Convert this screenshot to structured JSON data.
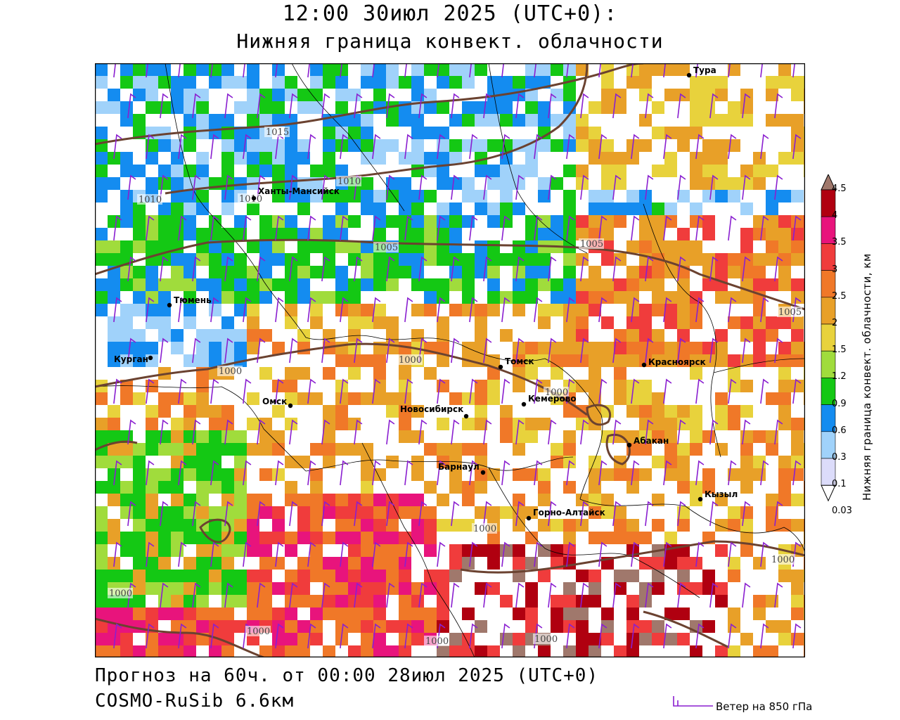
{
  "header": {
    "line1": "12:00 30июл 2025 (UTC+0):",
    "line2": "Нижняя граница конвект. облачности"
  },
  "footer": {
    "forecast": "Прогноз на 60ч. от 00:00 28июл 2025 (UTC+0)",
    "model": "COSMO-RuSib 6.6км",
    "wind_legend": "Ветер на 850 гПа"
  },
  "colorbar": {
    "title": "Нижняя граница конвект. облачности, км",
    "levels": [
      {
        "label": "4.5",
        "color": "#a0786c"
      },
      {
        "label": "4",
        "color": "#b00010"
      },
      {
        "label": "3.5",
        "color": "#e8147c"
      },
      {
        "label": "3",
        "color": "#f03c3c"
      },
      {
        "label": "2.5",
        "color": "#f07828"
      },
      {
        "label": "2",
        "color": "#e8a028"
      },
      {
        "label": "1.5",
        "color": "#e8d23c"
      },
      {
        "label": "1.2",
        "color": "#a0dc3c"
      },
      {
        "label": "0.9",
        "color": "#14c814"
      },
      {
        "label": "0.6",
        "color": "#148cf0"
      },
      {
        "label": "0.3",
        "color": "#a0d2fa"
      },
      {
        "label": "0.1",
        "color": "#dcdcfa"
      },
      {
        "label": "0.03",
        "color": "#ffffff"
      }
    ]
  },
  "cities": [
    {
      "name": "Тура"
    },
    {
      "name": "Ханты-Мансийск"
    },
    {
      "name": "Тюмень"
    },
    {
      "name": "Курган"
    },
    {
      "name": "Омск"
    },
    {
      "name": "Новосибирск"
    },
    {
      "name": "Томск"
    },
    {
      "name": "Кемерово"
    },
    {
      "name": "Красноярск"
    },
    {
      "name": "Абакан"
    },
    {
      "name": "Барнаул"
    },
    {
      "name": "Горно-Алтайск"
    },
    {
      "name": "Кызыл"
    }
  ],
  "isobar_labels": [
    "1010",
    "1015",
    "1010",
    "1010",
    "1005",
    "1005",
    "1005",
    "1000",
    "1000",
    "1000",
    "1000",
    "1000",
    "1000",
    "1000",
    "1000",
    "1000"
  ]
}
